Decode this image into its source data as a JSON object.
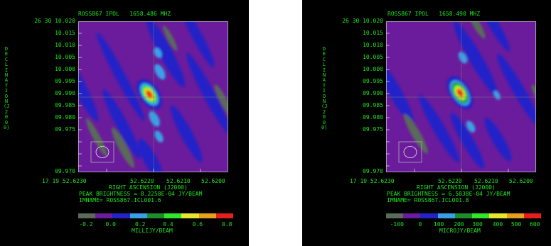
{
  "panels": [
    {
      "title": "ROSS867 IPOL   1658.486 MHZ",
      "dec_labels": [
        "26 30 10.020",
        "10.015",
        "10.010",
        "10.005",
        "10.000",
        "09.995",
        "09.990",
        "09.985",
        "09.980",
        "09.975",
        "09.970"
      ],
      "ra_labels": [
        "17 19 52.6230",
        "52.6220",
        "52.6210",
        "52.6200"
      ],
      "xlabel": "RIGHT ASCENSION (J2000)",
      "ylabel": "DECLINATION (J2000)",
      "peak": "PEAK BRIGHTNESS = 8.2258E-04 JY/BEAM",
      "imname": "IMNAME= ROSS867.ICL001.6",
      "scale_ticks": [
        "-0.2",
        "0.0",
        "0.2",
        "0.4",
        "0.6",
        "0.8"
      ],
      "scale_unit": "MILLIJY/BEAM"
    },
    {
      "title": "ROSS867 IPOL   1658.490 MHZ",
      "dec_labels": [
        "26 30 10.020",
        "10.015",
        "10.010",
        "10.005",
        "10.000",
        "09.995",
        "09.990",
        "09.985",
        "09.980",
        "09.975",
        "09.970"
      ],
      "ra_labels": [
        "17 19 52.6230",
        "52.6220",
        "52.6210",
        "52.6200"
      ],
      "xlabel": "RIGHT ASCENSION (J2000)",
      "ylabel": "DECLINATION (J2000)",
      "peak": "PEAK BRIGHTNESS = 6.5838E-04 JY/BEAM",
      "imname": "IMNAME= ROSS867.ICL001.8",
      "scale_ticks": [
        "-100",
        "0",
        "100",
        "200",
        "300",
        "400",
        "500",
        "600"
      ],
      "scale_unit": "MICROJY/BEAM"
    }
  ],
  "colors": {
    "text": "#1ee61e",
    "background": "#000000",
    "palette": [
      "#5a6b5a",
      "#6a1c9c",
      "#2323c8",
      "#3aa0e6",
      "#1e8c2a",
      "#2ee62e",
      "#e6e62e",
      "#e6a01e",
      "#e61e1e"
    ]
  }
}
